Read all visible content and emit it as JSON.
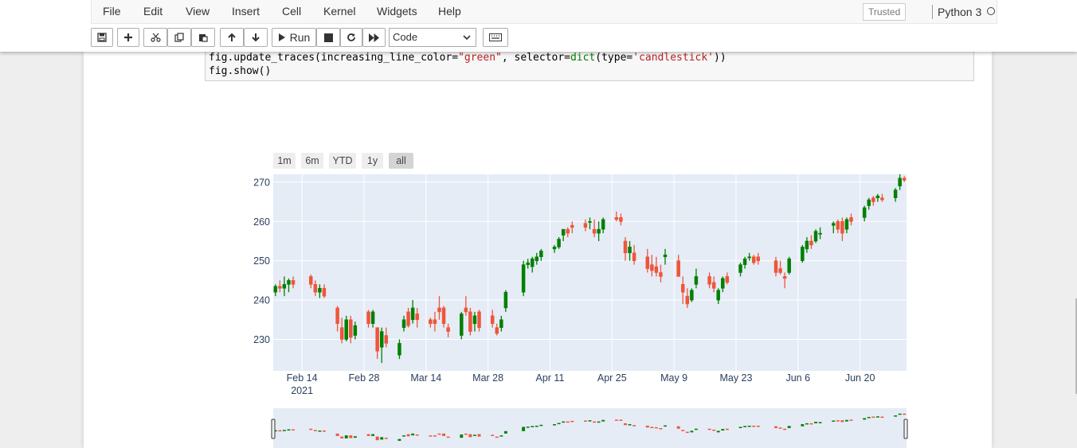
{
  "menu": [
    "File",
    "Edit",
    "View",
    "Insert",
    "Cell",
    "Kernel",
    "Widgets",
    "Help"
  ],
  "trusted": "Trusted",
  "kernel": "Python 3",
  "toolbar": {
    "run_label": "Run",
    "cell_type": "Code"
  },
  "code": {
    "line1_prefix": "fig.update_traces(increasing_line_color=",
    "line1_str": "\"green\"",
    "line1_mid": ", selector=",
    "line1_kw": "dict",
    "line1_mid2": "(type=",
    "line1_str2": "'candlestick'",
    "line1_end": "))",
    "line2": "fig.show()"
  },
  "range_buttons": [
    "1m",
    "6m",
    "YTD",
    "1y",
    "all"
  ],
  "colors": {
    "increasing": "#008000",
    "decreasing": "#ef553b",
    "plot_bg": "#e5ecf6"
  },
  "chart_data": {
    "type": "candlestick",
    "title": "",
    "xlabel": "",
    "ylabel": "",
    "ylim": [
      222,
      272
    ],
    "y_ticks": [
      230,
      240,
      250,
      260,
      270
    ],
    "x_ticks": [
      {
        "date": "2021-02-14",
        "label": "Feb 14",
        "sub": "2021"
      },
      {
        "date": "2021-02-28",
        "label": "Feb 28",
        "sub": ""
      },
      {
        "date": "2021-03-14",
        "label": "Mar 14",
        "sub": ""
      },
      {
        "date": "2021-03-28",
        "label": "Mar 28",
        "sub": ""
      },
      {
        "date": "2021-04-11",
        "label": "Apr 11",
        "sub": ""
      },
      {
        "date": "2021-04-25",
        "label": "Apr 25",
        "sub": ""
      },
      {
        "date": "2021-05-09",
        "label": "May 9",
        "sub": ""
      },
      {
        "date": "2021-05-23",
        "label": "May 23",
        "sub": ""
      },
      {
        "date": "2021-06-06",
        "label": "Jun 6",
        "sub": ""
      },
      {
        "date": "2021-06-20",
        "label": "Jun 20",
        "sub": ""
      }
    ],
    "x_range": [
      "2021-02-08",
      "2021-06-30"
    ],
    "grid": true,
    "rangeslider": true,
    "ohlc": [
      [
        "2021-02-08",
        242,
        244,
        241,
        243.5
      ],
      [
        "2021-02-09",
        243.5,
        245,
        242,
        243
      ],
      [
        "2021-02-10",
        243,
        246,
        241,
        244
      ],
      [
        "2021-02-11",
        244,
        245.5,
        242,
        245
      ],
      [
        "2021-02-12",
        245,
        246,
        243,
        244
      ],
      [
        "2021-02-16",
        246,
        246.5,
        243,
        244
      ],
      [
        "2021-02-17",
        244,
        245,
        241,
        242
      ],
      [
        "2021-02-18",
        242,
        244,
        240.5,
        243
      ],
      [
        "2021-02-19",
        243,
        244,
        240.5,
        241
      ],
      [
        "2021-02-22",
        238,
        238.5,
        232,
        234
      ],
      [
        "2021-02-23",
        233,
        235.5,
        229,
        230
      ],
      [
        "2021-02-24",
        230,
        236,
        229.5,
        235
      ],
      [
        "2021-02-25",
        235,
        236,
        229,
        230.5
      ],
      [
        "2021-02-26",
        231,
        234.5,
        230,
        233.5
      ],
      [
        "2021-03-01",
        237,
        237.5,
        233,
        234
      ],
      [
        "2021-03-02",
        234,
        237.5,
        233,
        237
      ],
      [
        "2021-03-03",
        233,
        233,
        225,
        227
      ],
      [
        "2021-03-04",
        228,
        233,
        224,
        232
      ],
      [
        "2021-03-05",
        231,
        233,
        228,
        229
      ],
      [
        "2021-03-08",
        226,
        230,
        225,
        229
      ],
      [
        "2021-03-09",
        233,
        236,
        232,
        235
      ],
      [
        "2021-03-10",
        237,
        238,
        233,
        233.5
      ],
      [
        "2021-03-11",
        235,
        240,
        234,
        238
      ],
      [
        "2021-03-12",
        236.5,
        238,
        233,
        235
      ],
      [
        "2021-03-15",
        235,
        235.5,
        233,
        234
      ],
      [
        "2021-03-16",
        235,
        237,
        232,
        234
      ],
      [
        "2021-03-17",
        238,
        241,
        235,
        237
      ],
      [
        "2021-03-18",
        238,
        238.5,
        233,
        234
      ],
      [
        "2021-03-19",
        233,
        234,
        230.5,
        232
      ],
      [
        "2021-03-22",
        231,
        237,
        230,
        236.5
      ],
      [
        "2021-03-23",
        238,
        241,
        236,
        237
      ],
      [
        "2021-03-24",
        237,
        238,
        231,
        232
      ],
      [
        "2021-03-25",
        234,
        237,
        232,
        236
      ],
      [
        "2021-03-26",
        237,
        237.5,
        232,
        233
      ],
      [
        "2021-03-29",
        236,
        237.5,
        233,
        234
      ],
      [
        "2021-03-30",
        233,
        234,
        231,
        231.5
      ],
      [
        "2021-03-31",
        233,
        236,
        232,
        235
      ],
      [
        "2021-04-01",
        238,
        242.5,
        237,
        242
      ],
      [
        "2021-04-05",
        242,
        250,
        241,
        249
      ],
      [
        "2021-04-06",
        249,
        250.5,
        248,
        249.5
      ],
      [
        "2021-04-07",
        248.5,
        251,
        247,
        250.5
      ],
      [
        "2021-04-08",
        250,
        252,
        249,
        251
      ],
      [
        "2021-04-09",
        251,
        253,
        250,
        252.5
      ],
      [
        "2021-04-12",
        253,
        254,
        252,
        253.5
      ],
      [
        "2021-04-13",
        253.5,
        256,
        253,
        255.5
      ],
      [
        "2021-04-14",
        256.5,
        258,
        255,
        258
      ],
      [
        "2021-04-15",
        258,
        258.5,
        256,
        257
      ],
      [
        "2021-04-16",
        259,
        260,
        257,
        258.5
      ],
      [
        "2021-04-19",
        259.5,
        260.5,
        257.5,
        258.5
      ],
      [
        "2021-04-20",
        260,
        261,
        258,
        260
      ],
      [
        "2021-04-21",
        258,
        260.5,
        256,
        257
      ],
      [
        "2021-04-22",
        257,
        260,
        255,
        258
      ],
      [
        "2021-04-23",
        258,
        261,
        257,
        260.5
      ],
      [
        "2021-04-26",
        261,
        262.5,
        260,
        260.5
      ],
      [
        "2021-04-27",
        261,
        262,
        259,
        260
      ],
      [
        "2021-04-28",
        255,
        256,
        250,
        252
      ],
      [
        "2021-04-29",
        252,
        255,
        250,
        253.5
      ],
      [
        "2021-04-30",
        252,
        254,
        249,
        250
      ],
      [
        "2021-05-03",
        251,
        253,
        247,
        248
      ],
      [
        "2021-05-04",
        249,
        251.5,
        246,
        247.5
      ],
      [
        "2021-05-05",
        248.5,
        251,
        246,
        247
      ],
      [
        "2021-05-06",
        247,
        249,
        244.5,
        246
      ],
      [
        "2021-05-07",
        251,
        253,
        249,
        251.5
      ],
      [
        "2021-05-10",
        250,
        251.5,
        246,
        246
      ],
      [
        "2021-05-11",
        244,
        246,
        239,
        242
      ],
      [
        "2021-05-12",
        241,
        243,
        238,
        239
      ],
      [
        "2021-05-13",
        240,
        243,
        239.5,
        242.5
      ],
      [
        "2021-05-14",
        244,
        248,
        243,
        246
      ],
      [
        "2021-05-17",
        246,
        247,
        243,
        244
      ],
      [
        "2021-05-18",
        244.5,
        246,
        242,
        243
      ],
      [
        "2021-05-19",
        240,
        243,
        239,
        242.5
      ],
      [
        "2021-05-20",
        243,
        246,
        242,
        245.5
      ],
      [
        "2021-05-21",
        246,
        247,
        244,
        244.5
      ],
      [
        "2021-05-24",
        247,
        249.5,
        246,
        249
      ],
      [
        "2021-05-25",
        249,
        251,
        248,
        250.5
      ],
      [
        "2021-05-26",
        251,
        252,
        250,
        251
      ],
      [
        "2021-05-27",
        251,
        251.5,
        249,
        249.5
      ],
      [
        "2021-05-28",
        251,
        252,
        249,
        250
      ],
      [
        "2021-06-01",
        250,
        251,
        246,
        247
      ],
      [
        "2021-06-02",
        248,
        250,
        246.5,
        247
      ],
      [
        "2021-06-03",
        246,
        247,
        243,
        245.5
      ],
      [
        "2021-06-04",
        247,
        251,
        246.5,
        250.5
      ],
      [
        "2021-06-07",
        250,
        254,
        249.5,
        253.5
      ],
      [
        "2021-06-08",
        253,
        256,
        252,
        255
      ],
      [
        "2021-06-09",
        255,
        256.5,
        253,
        254
      ],
      [
        "2021-06-10",
        255,
        258,
        254.5,
        257.5
      ],
      [
        "2021-06-11",
        257,
        258.5,
        255.5,
        257
      ],
      [
        "2021-06-14",
        259,
        260,
        257,
        259.5
      ],
      [
        "2021-06-15",
        260,
        260.5,
        257,
        258
      ],
      [
        "2021-06-16",
        260,
        261,
        255,
        257
      ],
      [
        "2021-06-17",
        258,
        261,
        257,
        260.5
      ],
      [
        "2021-06-18",
        261,
        262,
        259,
        260
      ],
      [
        "2021-06-21",
        261,
        264,
        260,
        263.5
      ],
      [
        "2021-06-22",
        264,
        266,
        263,
        265.5
      ],
      [
        "2021-06-23",
        266,
        266.5,
        264,
        265
      ],
      [
        "2021-06-24",
        266,
        267,
        265,
        266.5
      ],
      [
        "2021-06-25",
        266,
        267,
        265,
        265.5
      ],
      [
        "2021-06-28",
        266,
        268.5,
        265,
        268
      ],
      [
        "2021-06-29",
        269,
        272,
        268,
        271
      ],
      [
        "2021-06-30",
        271,
        271.5,
        270,
        270.5
      ]
    ]
  }
}
